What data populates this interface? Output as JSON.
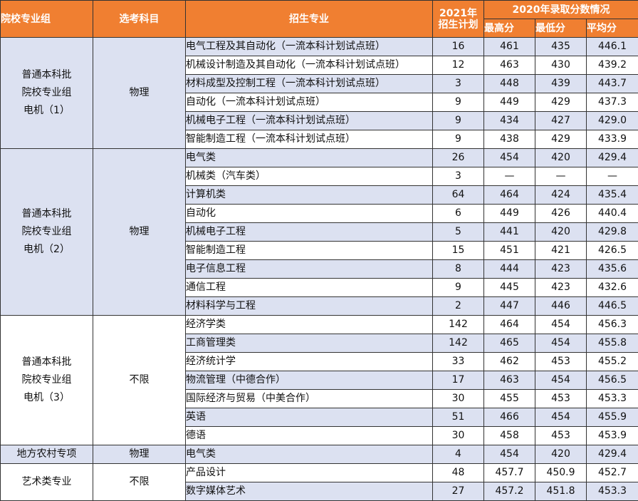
{
  "header": {
    "group": "院校专业组",
    "subject": "选考科目",
    "major": "招生专业",
    "plan": "2021年\n招生计划",
    "scores2020": "2020年录取分数情况",
    "max": "最高分",
    "min": "最低分",
    "avg": "平均分"
  },
  "groups": [
    {
      "name": "普通本科批\n院校专业组\n电机（1）",
      "subject": "物理"
    },
    {
      "name": "普通本科批\n院校专业组\n电机（2）",
      "subject": "物理"
    },
    {
      "name": "普通本科批\n院校专业组\n电机（3）",
      "subject": "不限"
    },
    {
      "name": "地方农村专项",
      "subject": "物理"
    },
    {
      "name": "艺术类专业",
      "subject": "不限"
    }
  ],
  "rows": [
    {
      "major": "电气工程及其自动化（一流本科计划试点班）",
      "plan": "16",
      "max": "461",
      "min": "435",
      "avg": "446.1"
    },
    {
      "major": "机械设计制造及其自动化（一流本科计划试点班）",
      "plan": "12",
      "max": "463",
      "min": "430",
      "avg": "439.2"
    },
    {
      "major": "材料成型及控制工程（一流本科计划试点班）",
      "plan": "3",
      "max": "448",
      "min": "439",
      "avg": "443.7"
    },
    {
      "major": "自动化（一流本科计划试点班）",
      "plan": "9",
      "max": "449",
      "min": "429",
      "avg": "437.3"
    },
    {
      "major": "机械电子工程（一流本科计划试点班）",
      "plan": "9",
      "max": "434",
      "min": "427",
      "avg": "429.0"
    },
    {
      "major": "智能制造工程（一流本科计划试点班）",
      "plan": "9",
      "max": "438",
      "min": "429",
      "avg": "433.9"
    },
    {
      "major": "电气类",
      "plan": "26",
      "max": "454",
      "min": "420",
      "avg": "429.4"
    },
    {
      "major": "机械类（汽车类）",
      "plan": "3",
      "max": "—",
      "min": "—",
      "avg": "—"
    },
    {
      "major": "计算机类",
      "plan": "64",
      "max": "464",
      "min": "424",
      "avg": "435.4"
    },
    {
      "major": "自动化",
      "plan": "6",
      "max": "449",
      "min": "426",
      "avg": "440.4"
    },
    {
      "major": "机械电子工程",
      "plan": "5",
      "max": "441",
      "min": "420",
      "avg": "429.8"
    },
    {
      "major": "智能制造工程",
      "plan": "15",
      "max": "451",
      "min": "421",
      "avg": "426.5"
    },
    {
      "major": "电子信息工程",
      "plan": "8",
      "max": "444",
      "min": "423",
      "avg": "435.6"
    },
    {
      "major": "通信工程",
      "plan": "9",
      "max": "445",
      "min": "423",
      "avg": "432.6"
    },
    {
      "major": "材料科学与工程",
      "plan": "2",
      "max": "447",
      "min": "446",
      "avg": "446.5"
    },
    {
      "major": "经济学类",
      "plan": "142",
      "max": "464",
      "min": "454",
      "avg": "456.3"
    },
    {
      "major": "工商管理类",
      "plan": "142",
      "max": "465",
      "min": "454",
      "avg": "455.8"
    },
    {
      "major": "经济统计学",
      "plan": "33",
      "max": "462",
      "min": "453",
      "avg": "455.2"
    },
    {
      "major": "物流管理（中德合作）",
      "plan": "17",
      "max": "463",
      "min": "454",
      "avg": "456.5"
    },
    {
      "major": "国际经济与贸易（中美合作）",
      "plan": "30",
      "max": "455",
      "min": "453",
      "avg": "453.3"
    },
    {
      "major": "英语",
      "plan": "51",
      "max": "466",
      "min": "454",
      "avg": "455.9"
    },
    {
      "major": "德语",
      "plan": "30",
      "max": "458",
      "min": "453",
      "avg": "453.9"
    },
    {
      "major": "电气类",
      "plan": "4",
      "max": "454",
      "min": "420",
      "avg": "429.4"
    },
    {
      "major": "产品设计",
      "plan": "48",
      "max": "457.7",
      "min": "450.9",
      "avg": "452.7"
    },
    {
      "major": "数字媒体艺术",
      "plan": "27",
      "max": "457.2",
      "min": "451.8",
      "avg": "453.3"
    }
  ]
}
